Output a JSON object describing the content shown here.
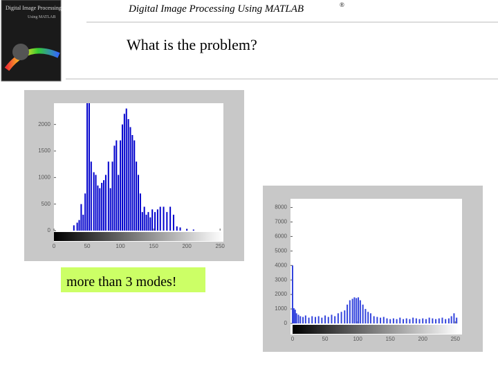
{
  "header": {
    "title": "Digital Image Processing Using MATLAB",
    "mark": "®",
    "cover": {
      "title": "Digital Image Processing",
      "subtitle": "Using MATLAB"
    }
  },
  "slide_title": "What is the problem?",
  "callout": "more than 3 modes!",
  "figures": [
    {
      "type": "histogram",
      "color": "#0000cc",
      "xlim": [
        0,
        255
      ],
      "ylim": [
        0,
        2400
      ],
      "xticks": [
        0,
        50,
        100,
        150,
        200,
        250
      ],
      "yticks": [
        0,
        500,
        1000,
        1500,
        2000
      ],
      "x": [
        30,
        35,
        38,
        41,
        44,
        47,
        50,
        53,
        56,
        60,
        63,
        66,
        69,
        72,
        75,
        78,
        82,
        85,
        88,
        91,
        94,
        97,
        100,
        103,
        106,
        109,
        112,
        115,
        118,
        121,
        124,
        127,
        130,
        133,
        136,
        139,
        142,
        145,
        148,
        152,
        156,
        160,
        165,
        170,
        175,
        180,
        185,
        190,
        200,
        210
      ],
      "values": [
        100,
        150,
        200,
        500,
        300,
        700,
        2400,
        2400,
        1300,
        1100,
        1050,
        850,
        800,
        900,
        950,
        1050,
        1300,
        800,
        1300,
        1600,
        1700,
        1050,
        1700,
        2000,
        2200,
        2300,
        2100,
        1950,
        1800,
        1700,
        1300,
        1050,
        700,
        350,
        450,
        300,
        350,
        250,
        400,
        350,
        400,
        450,
        450,
        350,
        450,
        300,
        80,
        60,
        30,
        20
      ]
    },
    {
      "type": "histogram",
      "color": "#3344dd",
      "xlim": [
        0,
        255
      ],
      "ylim": [
        0,
        8600
      ],
      "xticks": [
        0,
        50,
        100,
        150,
        200,
        250
      ],
      "yticks": [
        0,
        1000,
        2000,
        3000,
        4000,
        5000,
        6000,
        7000,
        8000
      ],
      "x": [
        0,
        2,
        4,
        6,
        9,
        12,
        16,
        20,
        25,
        30,
        35,
        40,
        45,
        50,
        55,
        60,
        65,
        70,
        75,
        80,
        84,
        88,
        92,
        95,
        98,
        101,
        104,
        108,
        112,
        116,
        120,
        125,
        130,
        135,
        140,
        145,
        150,
        155,
        160,
        165,
        170,
        175,
        180,
        185,
        190,
        195,
        200,
        205,
        210,
        215,
        220,
        225,
        230,
        235,
        240,
        244,
        248,
        252
      ],
      "values": [
        4000,
        1050,
        950,
        700,
        600,
        500,
        450,
        550,
        400,
        500,
        450,
        500,
        400,
        550,
        450,
        600,
        500,
        700,
        800,
        900,
        1300,
        1600,
        1700,
        1800,
        1750,
        1800,
        1600,
        1300,
        1000,
        800,
        700,
        500,
        450,
        400,
        450,
        350,
        300,
        350,
        300,
        400,
        300,
        350,
        300,
        400,
        350,
        300,
        350,
        300,
        400,
        350,
        300,
        350,
        400,
        300,
        350,
        500,
        700,
        400
      ]
    }
  ]
}
